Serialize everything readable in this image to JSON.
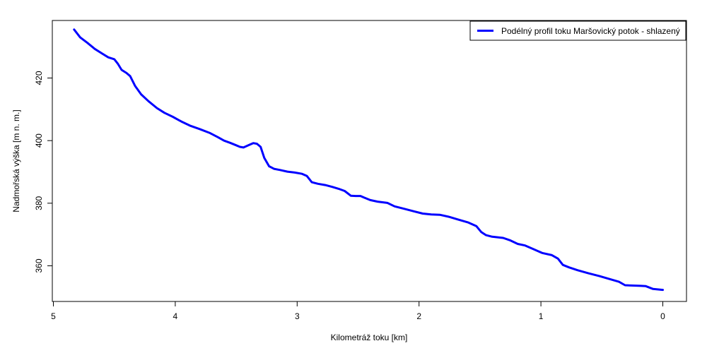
{
  "chart_data": {
    "type": "line",
    "title": "",
    "xlabel": "Kilometráž toku [km]",
    "ylabel": "Nadmořská výška [m n. m.]",
    "xlim": [
      5.0,
      0.0
    ],
    "ylim": [
      348.0,
      438.0
    ],
    "x_reversed": true,
    "x_ticks": [
      5,
      4,
      3,
      2,
      1,
      0
    ],
    "y_ticks": [
      360,
      380,
      400,
      420
    ],
    "grid": false,
    "legend_position": "top-right",
    "series": [
      {
        "name": "Podélný profil toku Maršovický potok - shlazený",
        "color": "#0000ff",
        "points": [
          [
            4.83,
            435.5
          ],
          [
            4.78,
            433.0
          ],
          [
            4.72,
            431.2
          ],
          [
            4.66,
            429.3
          ],
          [
            4.6,
            427.8
          ],
          [
            4.55,
            426.6
          ],
          [
            4.5,
            426.0
          ],
          [
            4.47,
            424.5
          ],
          [
            4.44,
            422.6
          ],
          [
            4.4,
            421.6
          ],
          [
            4.37,
            420.6
          ],
          [
            4.33,
            417.5
          ],
          [
            4.28,
            414.8
          ],
          [
            4.22,
            412.6
          ],
          [
            4.15,
            410.4
          ],
          [
            4.09,
            408.9
          ],
          [
            4.02,
            407.6
          ],
          [
            3.95,
            406.1
          ],
          [
            3.88,
            404.8
          ],
          [
            3.8,
            403.7
          ],
          [
            3.72,
            402.5
          ],
          [
            3.65,
            401.1
          ],
          [
            3.6,
            400.0
          ],
          [
            3.55,
            399.3
          ],
          [
            3.5,
            398.5
          ],
          [
            3.47,
            398.0
          ],
          [
            3.44,
            397.8
          ],
          [
            3.4,
            398.5
          ],
          [
            3.36,
            399.2
          ],
          [
            3.33,
            399.0
          ],
          [
            3.3,
            398.0
          ],
          [
            3.27,
            394.5
          ],
          [
            3.23,
            391.8
          ],
          [
            3.19,
            391.0
          ],
          [
            3.14,
            390.6
          ],
          [
            3.08,
            390.1
          ],
          [
            3.02,
            389.8
          ],
          [
            2.96,
            389.4
          ],
          [
            2.92,
            388.7
          ],
          [
            2.88,
            386.7
          ],
          [
            2.83,
            386.2
          ],
          [
            2.77,
            385.8
          ],
          [
            2.71,
            385.2
          ],
          [
            2.66,
            384.6
          ],
          [
            2.61,
            383.9
          ],
          [
            2.56,
            382.4
          ],
          [
            2.52,
            382.3
          ],
          [
            2.48,
            382.3
          ],
          [
            2.45,
            381.8
          ],
          [
            2.4,
            381.0
          ],
          [
            2.34,
            380.5
          ],
          [
            2.26,
            380.1
          ],
          [
            2.2,
            379.0
          ],
          [
            2.12,
            378.2
          ],
          [
            2.04,
            377.4
          ],
          [
            1.97,
            376.7
          ],
          [
            1.9,
            376.4
          ],
          [
            1.83,
            376.3
          ],
          [
            1.75,
            375.6
          ],
          [
            1.68,
            374.8
          ],
          [
            1.6,
            373.9
          ],
          [
            1.53,
            372.7
          ],
          [
            1.49,
            370.8
          ],
          [
            1.45,
            369.8
          ],
          [
            1.4,
            369.3
          ],
          [
            1.31,
            368.9
          ],
          [
            1.25,
            368.1
          ],
          [
            1.19,
            367.0
          ],
          [
            1.13,
            366.5
          ],
          [
            1.06,
            365.3
          ],
          [
            0.99,
            364.1
          ],
          [
            0.91,
            363.4
          ],
          [
            0.86,
            362.3
          ],
          [
            0.82,
            360.3
          ],
          [
            0.77,
            359.5
          ],
          [
            0.7,
            358.6
          ],
          [
            0.61,
            357.6
          ],
          [
            0.52,
            356.7
          ],
          [
            0.44,
            355.8
          ],
          [
            0.36,
            354.9
          ],
          [
            0.31,
            353.8
          ],
          [
            0.26,
            353.7
          ],
          [
            0.18,
            353.6
          ],
          [
            0.14,
            353.5
          ],
          [
            0.08,
            352.6
          ],
          [
            0.0,
            352.3
          ]
        ]
      }
    ]
  }
}
